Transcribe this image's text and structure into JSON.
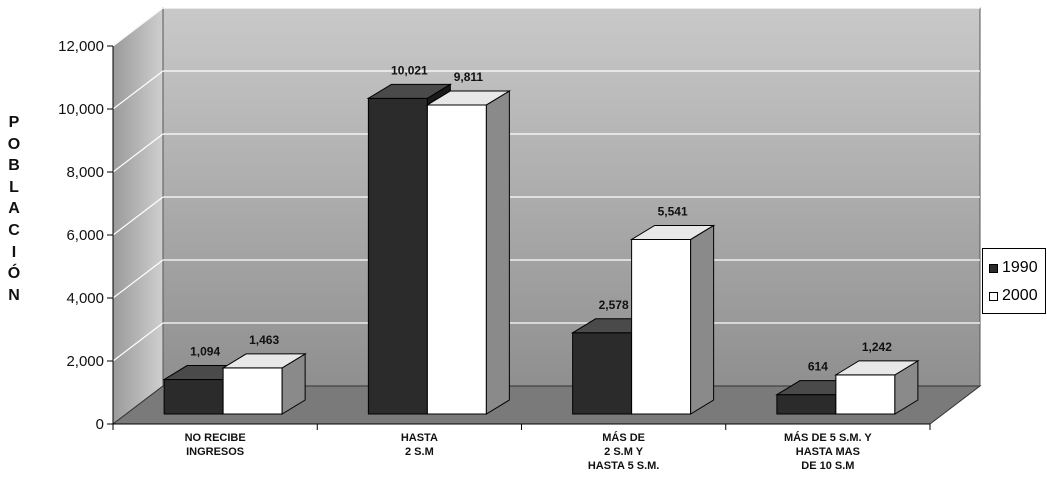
{
  "chart_data": {
    "type": "bar",
    "title": "",
    "ylabel": "POBLACIÓN",
    "xlabel": "",
    "ylim": [
      0,
      12000
    ],
    "yticks": [
      0,
      2000,
      4000,
      6000,
      8000,
      10000,
      12000
    ],
    "ytick_labels": [
      "0",
      "2,000",
      "4,000",
      "6,000",
      "8,000",
      "10,000",
      "12,000"
    ],
    "categories": [
      [
        "NO RECIBE",
        "INGRESOS"
      ],
      [
        "HASTA",
        "2 S.M"
      ],
      [
        "MÁS DE",
        "2 S.M Y",
        "HASTA 5 S.M."
      ],
      [
        "MÁS DE 5 S.M. Y",
        "HASTA MAS",
        "DE 10 S.M"
      ]
    ],
    "series": [
      {
        "name": "1990",
        "values": [
          1094,
          10021,
          2578,
          614
        ],
        "labels": [
          "1,094",
          "10,021",
          "2,578",
          "614"
        ]
      },
      {
        "name": "2000",
        "values": [
          1463,
          9811,
          5541,
          1242
        ],
        "labels": [
          "1,463",
          "9,811",
          "5,541",
          "1,242"
        ]
      }
    ],
    "grid": true,
    "legend_position": "right",
    "colors": {
      "series_1990": "#2b2b2b",
      "series_2000": "#ffffff",
      "wall": "#a6a6a6",
      "floor": "#7a7a7a",
      "grid": "#ffffff"
    }
  },
  "legend": {
    "items": [
      {
        "label": "1990",
        "icon": "filled-square-icon"
      },
      {
        "label": "2000",
        "icon": "empty-square-icon"
      }
    ]
  }
}
